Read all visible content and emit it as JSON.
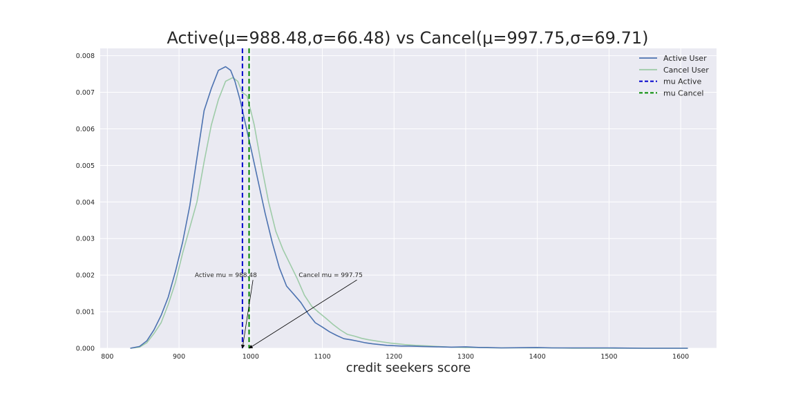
{
  "chart_data": {
    "type": "line",
    "title": "Active(μ=988.48,σ=66.48) vs Cancel(μ=997.75,σ=69.71)",
    "xlabel": "credit seekers score",
    "ylabel": "",
    "xlim": [
      790,
      1650
    ],
    "ylim": [
      0,
      0.0082
    ],
    "x_ticks": [
      "800",
      "900",
      "1000",
      "1100",
      "1200",
      "1300",
      "1400",
      "1500",
      "1600"
    ],
    "y_ticks": [
      "0.000",
      "0.001",
      "0.002",
      "0.003",
      "0.004",
      "0.005",
      "0.006",
      "0.007",
      "0.008"
    ],
    "grid": true,
    "legend_position": "top-right",
    "series": [
      {
        "name": "Active User",
        "color": "#4c72b0",
        "style": "solid",
        "x": [
          832,
          845,
          855,
          865,
          875,
          885,
          895,
          905,
          915,
          925,
          935,
          945,
          955,
          965,
          972,
          978,
          985,
          992,
          1000,
          1010,
          1020,
          1030,
          1040,
          1050,
          1060,
          1070,
          1080,
          1090,
          1100,
          1110,
          1120,
          1130,
          1140,
          1150,
          1160,
          1170,
          1180,
          1190,
          1200,
          1210,
          1220,
          1240,
          1260,
          1280,
          1300,
          1310,
          1320,
          1330,
          1350,
          1400,
          1420,
          1450,
          1500,
          1550,
          1610
        ],
        "y": [
          0.0,
          5e-05,
          0.0002,
          0.0005,
          0.0009,
          0.0014,
          0.0021,
          0.0029,
          0.0039,
          0.0052,
          0.0065,
          0.0071,
          0.0076,
          0.0077,
          0.0076,
          0.0073,
          0.0068,
          0.0062,
          0.0055,
          0.0046,
          0.0037,
          0.0029,
          0.0022,
          0.0017,
          0.00148,
          0.00125,
          0.00095,
          0.0007,
          0.00058,
          0.00045,
          0.00035,
          0.00026,
          0.00023,
          0.00019,
          0.00015,
          0.00012,
          0.0001,
          8e-05,
          7e-05,
          6e-05,
          6e-05,
          5e-05,
          4e-05,
          3e-05,
          4e-05,
          3e-05,
          2e-05,
          2e-05,
          1e-05,
          2e-05,
          1e-05,
          1e-05,
          1e-05,
          0.0,
          0.0
        ]
      },
      {
        "name": "Cancel User",
        "color": "#9ecba8",
        "style": "solid",
        "x": [
          832,
          845,
          855,
          865,
          875,
          885,
          895,
          905,
          915,
          925,
          935,
          945,
          955,
          965,
          975,
          982,
          988,
          995,
          1005,
          1015,
          1025,
          1035,
          1045,
          1055,
          1065,
          1075,
          1085,
          1095,
          1105,
          1115,
          1125,
          1135,
          1145,
          1155,
          1165,
          1175,
          1185,
          1195,
          1205,
          1215,
          1230,
          1250,
          1260,
          1280,
          1300,
          1320,
          1340,
          1380,
          1420,
          1450,
          1500,
          1550,
          1610
        ],
        "y": [
          0.0,
          3e-05,
          0.00015,
          0.0004,
          0.0007,
          0.0012,
          0.0018,
          0.0026,
          0.0033,
          0.004,
          0.0051,
          0.0061,
          0.0068,
          0.0073,
          0.0074,
          0.0073,
          0.007,
          0.0069,
          0.0061,
          0.005,
          0.004,
          0.0032,
          0.0027,
          0.0023,
          0.0019,
          0.00145,
          0.00115,
          0.00098,
          0.00082,
          0.00065,
          0.0005,
          0.00038,
          0.00033,
          0.00027,
          0.00023,
          0.0002,
          0.00017,
          0.00014,
          0.00012,
          0.0001,
          8e-05,
          6e-05,
          5e-05,
          3e-05,
          2e-05,
          2e-05,
          1e-05,
          1e-05,
          1e-05,
          0.0,
          0.0,
          0.0,
          0.0
        ]
      }
    ],
    "mean_lines": [
      {
        "name": "mu Active",
        "x": 988.48,
        "color": "#0000cc",
        "style": "dashed"
      },
      {
        "name": "mu Cancel",
        "x": 997.75,
        "color": "#008800",
        "style": "dashed"
      }
    ],
    "annotations": [
      {
        "text": "Active mu = 988.48",
        "text_x": 922,
        "text_y": 0.002,
        "arrow_to_x": 988.48,
        "arrow_to_y": 0
      },
      {
        "text": "Cancel mu = 997.75",
        "text_x": 1067,
        "text_y": 0.002,
        "arrow_to_x": 997.75,
        "arrow_to_y": 0
      }
    ]
  }
}
